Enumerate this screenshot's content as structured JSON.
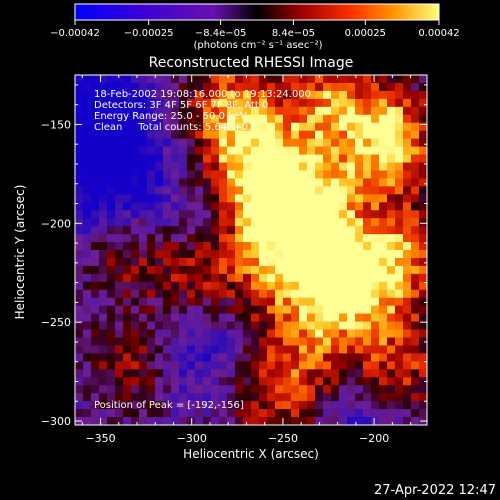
{
  "chart_data": {
    "type": "heatmap",
    "title": "Reconstructed RHESSI Image",
    "info_lines": [
      "18-Feb-2002 19:08:16.000 to 19:13:24.000",
      "Detectors: 3F 4F 5F 6F 7F 8F, Att 0",
      "Energy Range: 25.0 - 50.0 keV",
      "Clean     Total counts: 5.64E+03"
    ],
    "peak_label": "Position of Peak = [-192,-156]",
    "xlabel": "Heliocentric X (arcsec)",
    "ylabel": "Heliocentric Y (arcsec)",
    "xlim": [
      -364,
      -171
    ],
    "ylim": [
      -302,
      -125
    ],
    "xticks": [
      -350,
      -300,
      -250,
      -200
    ],
    "xtick_labels": [
      "−350",
      "−300",
      "−250",
      "−200"
    ],
    "yticks": [
      -150,
      -200,
      -250,
      -300
    ],
    "ytick_labels": [
      "−150",
      "−200",
      "−250",
      "−300"
    ],
    "colorbar": {
      "range": [
        -0.00042,
        0.00042
      ],
      "ticks": [
        -0.00042,
        -0.00025,
        -8.4e-05,
        8.4e-05,
        0.00025,
        0.00042
      ],
      "tick_labels": [
        "−0.00042",
        "−0.00025",
        "−8.4e−05",
        "8.4e−05",
        "0.00025",
        "0.00042"
      ],
      "unit_label": "(photons cm⁻² s⁻¹ asec⁻²)"
    },
    "peak": [
      -192,
      -156
    ],
    "grid": false
  },
  "footer": {
    "timestamp": "27-Apr-2022 12:47"
  }
}
